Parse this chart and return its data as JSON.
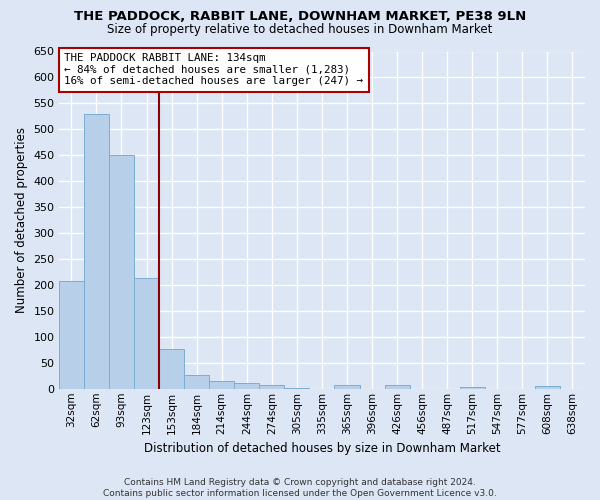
{
  "title": "THE PADDOCK, RABBIT LANE, DOWNHAM MARKET, PE38 9LN",
  "subtitle": "Size of property relative to detached houses in Downham Market",
  "xlabel": "Distribution of detached houses by size in Downham Market",
  "ylabel": "Number of detached properties",
  "footer_line1": "Contains HM Land Registry data © Crown copyright and database right 2024.",
  "footer_line2": "Contains public sector information licensed under the Open Government Licence v3.0.",
  "bar_labels": [
    "32sqm",
    "62sqm",
    "93sqm",
    "123sqm",
    "153sqm",
    "184sqm",
    "214sqm",
    "244sqm",
    "274sqm",
    "305sqm",
    "335sqm",
    "365sqm",
    "396sqm",
    "426sqm",
    "456sqm",
    "487sqm",
    "517sqm",
    "547sqm",
    "577sqm",
    "608sqm",
    "638sqm"
  ],
  "bar_values": [
    207,
    530,
    451,
    213,
    77,
    26,
    15,
    12,
    8,
    2,
    0,
    7,
    0,
    8,
    0,
    0,
    4,
    0,
    0,
    5,
    0
  ],
  "bar_color": "#b8cfea",
  "bar_edge_color": "#7aadd4",
  "bg_color": "#dce6f5",
  "grid_color": "#ffffff",
  "vline_x": 3.5,
  "vline_color": "#8b0000",
  "annotation_text": "THE PADDOCK RABBIT LANE: 134sqm\n← 84% of detached houses are smaller (1,283)\n16% of semi-detached houses are larger (247) →",
  "annotation_box_color": "#ffffff",
  "annotation_box_edge": "#aa0000",
  "ylim": [
    0,
    650
  ],
  "yticks": [
    0,
    50,
    100,
    150,
    200,
    250,
    300,
    350,
    400,
    450,
    500,
    550,
    600,
    650
  ]
}
